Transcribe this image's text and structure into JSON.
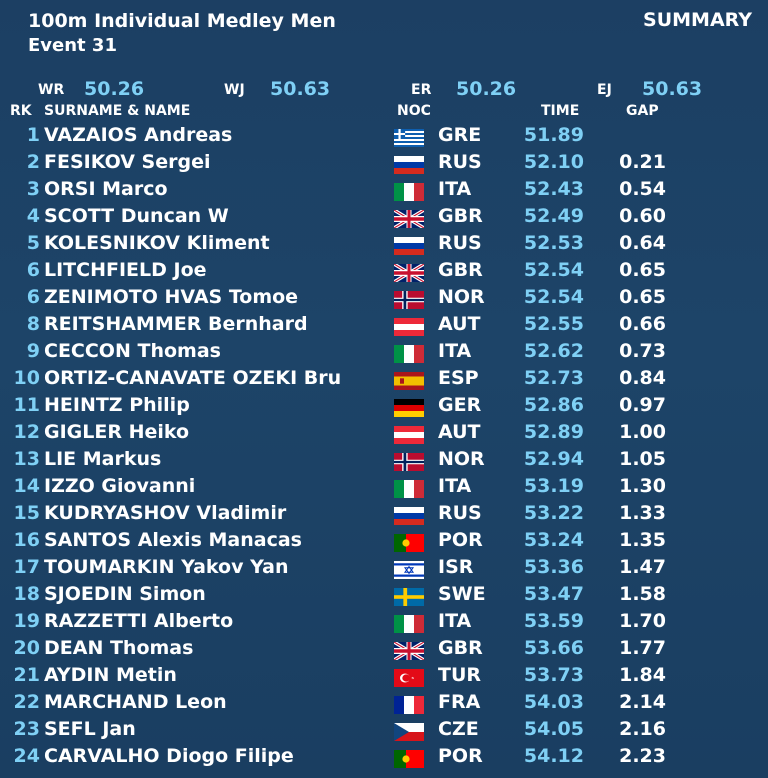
{
  "header": {
    "title": "100m Individual Medley Men",
    "event": "Event 31",
    "summary": "SUMMARY"
  },
  "records": {
    "wr_label": "WR",
    "wr_value": "50.26",
    "wj_label": "WJ",
    "wj_value": "50.63",
    "er_label": "ER",
    "er_value": "50.26",
    "ej_label": "EJ",
    "ej_value": "50.63"
  },
  "columns": {
    "rk": "RK",
    "name": "SURNAME & NAME",
    "noc": "NOC",
    "time": "TIME",
    "gap": "GAP"
  },
  "results": [
    {
      "rk": "1",
      "name": "VAZAIOS Andreas",
      "noc": "GRE",
      "flag": "greece",
      "time": "51.89",
      "gap": ""
    },
    {
      "rk": "2",
      "name": "FESIKOV Sergei",
      "noc": "RUS",
      "flag": "russia",
      "time": "52.10",
      "gap": "0.21"
    },
    {
      "rk": "3",
      "name": "ORSI Marco",
      "noc": "ITA",
      "flag": "italy",
      "time": "52.43",
      "gap": "0.54"
    },
    {
      "rk": "4",
      "name": "SCOTT Duncan W",
      "noc": "GBR",
      "flag": "uk",
      "time": "52.49",
      "gap": "0.60"
    },
    {
      "rk": "5",
      "name": "KOLESNIKOV Kliment",
      "noc": "RUS",
      "flag": "russia",
      "time": "52.53",
      "gap": "0.64"
    },
    {
      "rk": "6",
      "name": "LITCHFIELD Joe",
      "noc": "GBR",
      "flag": "uk",
      "time": "52.54",
      "gap": "0.65"
    },
    {
      "rk": "6",
      "name": "ZENIMOTO HVAS Tomoe",
      "noc": "NOR",
      "flag": "norway",
      "time": "52.54",
      "gap": "0.65"
    },
    {
      "rk": "8",
      "name": "REITSHAMMER Bernhard",
      "noc": "AUT",
      "flag": "austria",
      "time": "52.55",
      "gap": "0.66"
    },
    {
      "rk": "9",
      "name": "CECCON Thomas",
      "noc": "ITA",
      "flag": "italy",
      "time": "52.62",
      "gap": "0.73"
    },
    {
      "rk": "10",
      "name": "ORTIZ-CANAVATE OZEKI Bru",
      "noc": "ESP",
      "flag": "spain",
      "time": "52.73",
      "gap": "0.84"
    },
    {
      "rk": "11",
      "name": "HEINTZ Philip",
      "noc": "GER",
      "flag": "germany",
      "time": "52.86",
      "gap": "0.97"
    },
    {
      "rk": "12",
      "name": "GIGLER Heiko",
      "noc": "AUT",
      "flag": "austria",
      "time": "52.89",
      "gap": "1.00"
    },
    {
      "rk": "13",
      "name": "LIE Markus",
      "noc": "NOR",
      "flag": "norway",
      "time": "52.94",
      "gap": "1.05"
    },
    {
      "rk": "14",
      "name": "IZZO Giovanni",
      "noc": "ITA",
      "flag": "italy",
      "time": "53.19",
      "gap": "1.30"
    },
    {
      "rk": "15",
      "name": "KUDRYASHOV Vladimir",
      "noc": "RUS",
      "flag": "russia",
      "time": "53.22",
      "gap": "1.33"
    },
    {
      "rk": "16",
      "name": "SANTOS Alexis Manacas",
      "noc": "POR",
      "flag": "portugal",
      "time": "53.24",
      "gap": "1.35"
    },
    {
      "rk": "17",
      "name": "TOUMARKIN Yakov Yan",
      "noc": "ISR",
      "flag": "israel",
      "time": "53.36",
      "gap": "1.47"
    },
    {
      "rk": "18",
      "name": "SJOEDIN Simon",
      "noc": "SWE",
      "flag": "sweden",
      "time": "53.47",
      "gap": "1.58"
    },
    {
      "rk": "19",
      "name": "RAZZETTI Alberto",
      "noc": "ITA",
      "flag": "italy",
      "time": "53.59",
      "gap": "1.70"
    },
    {
      "rk": "20",
      "name": "DEAN Thomas",
      "noc": "GBR",
      "flag": "uk",
      "time": "53.66",
      "gap": "1.77"
    },
    {
      "rk": "21",
      "name": "AYDIN Metin",
      "noc": "TUR",
      "flag": "turkey",
      "time": "53.73",
      "gap": "1.84"
    },
    {
      "rk": "22",
      "name": "MARCHAND Leon",
      "noc": "FRA",
      "flag": "france",
      "time": "54.03",
      "gap": "2.14"
    },
    {
      "rk": "23",
      "name": "SEFL Jan",
      "noc": "CZE",
      "flag": "czechia",
      "time": "54.05",
      "gap": "2.16"
    },
    {
      "rk": "24",
      "name": "CARVALHO Diogo Filipe",
      "noc": "POR",
      "flag": "portugal",
      "time": "54.12",
      "gap": "2.23"
    }
  ]
}
